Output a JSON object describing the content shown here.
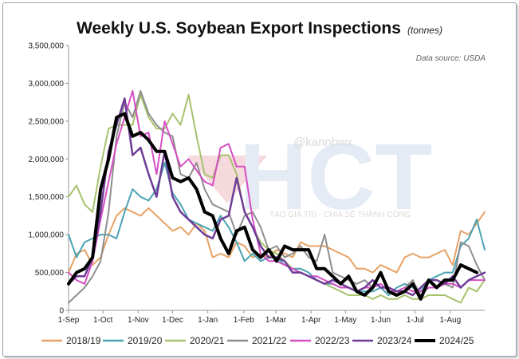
{
  "chart_data": {
    "type": "line",
    "title": "Weekly U.S. Soybean Export Inspections",
    "units": "(tonnes)",
    "source": "Data source: USDA",
    "xlabel": "",
    "ylabel": "",
    "ylim": [
      0,
      3500000
    ],
    "y_ticks": [
      0,
      500000,
      1000000,
      1500000,
      2000000,
      2500000,
      3000000,
      3500000
    ],
    "y_tick_labels": [
      "0",
      "500,000",
      "1,000,000",
      "1,500,000",
      "2,000,000",
      "2,500,000",
      "3,000,000",
      "3,500,000"
    ],
    "x_week_range": [
      0,
      52
    ],
    "x_ticks": [
      0,
      4.3,
      8.7,
      13,
      17.4,
      21.9,
      25.9,
      30.3,
      34.6,
      39,
      43.3,
      47.7
    ],
    "x_tick_labels": [
      "1-Sep",
      "1-Oct",
      "1-Nov",
      "1-Dec",
      "1-Jan",
      "1-Feb",
      "1-Mar",
      "1-Apr",
      "1-May",
      "1-Jun",
      "1-Jul",
      "1-Aug"
    ],
    "legend_position": "bottom",
    "grid": false,
    "series": [
      {
        "name": "2018/19",
        "color": "#E8A265",
        "width": 2,
        "values": [
          500000,
          750000,
          800000,
          600000,
          700000,
          1000000,
          1250000,
          1350000,
          1300000,
          1250000,
          1350000,
          1250000,
          1150000,
          1050000,
          1100000,
          1000000,
          1150000,
          1050000,
          700000,
          750000,
          700000,
          900000,
          850000,
          700000,
          750000,
          700000,
          800000,
          750000,
          700000,
          900000,
          850000,
          850000,
          850000,
          800000,
          750000,
          700000,
          550000,
          550000,
          500000,
          600000,
          550000,
          500000,
          700000,
          750000,
          700000,
          700000,
          750000,
          800000,
          600000,
          1050000,
          1000000,
          1150000,
          1300000
        ]
      },
      {
        "name": "2019/20",
        "color": "#4AA3B3",
        "width": 2,
        "values": [
          1000000,
          700000,
          900000,
          950000,
          1000000,
          1000000,
          950000,
          1300000,
          1600000,
          1500000,
          1450000,
          1600000,
          1950000,
          1550000,
          1400000,
          1200000,
          1150000,
          1100000,
          1050000,
          1250000,
          1100000,
          900000,
          650000,
          750000,
          650000,
          700000,
          700000,
          600000,
          550000,
          550000,
          500000,
          400000,
          350000,
          350000,
          300000,
          300000,
          250000,
          250000,
          250000,
          300000,
          200000,
          300000,
          350000,
          300000,
          250000,
          400000,
          450000,
          500000,
          500000,
          850000,
          950000,
          1200000,
          800000
        ]
      },
      {
        "name": "2020/21",
        "color": "#A7C26D",
        "width": 2,
        "values": [
          1500000,
          1650000,
          1400000,
          1300000,
          1900000,
          2400000,
          2450000,
          2450000,
          2450000,
          2850000,
          2550000,
          2400000,
          2400000,
          2600000,
          2450000,
          2850000,
          2300000,
          1800000,
          1750000,
          2050000,
          2050000,
          1800000,
          1300000,
          1100000,
          900000,
          800000,
          750000,
          650000,
          550000,
          500000,
          450000,
          400000,
          350000,
          300000,
          250000,
          200000,
          200000,
          200000,
          150000,
          200000,
          150000,
          150000,
          200000,
          150000,
          150000,
          200000,
          200000,
          200000,
          150000,
          100000,
          300000,
          250000,
          400000
        ]
      },
      {
        "name": "2021/22",
        "color": "#8E8E8E",
        "width": 2,
        "values": [
          100000,
          200000,
          300000,
          450000,
          650000,
          1300000,
          2300000,
          2750000,
          2550000,
          2900000,
          2600000,
          2450000,
          2350000,
          2300000,
          1800000,
          1750000,
          1950000,
          1600000,
          1400000,
          1350000,
          1300000,
          1000000,
          1250000,
          1300000,
          1100000,
          800000,
          850000,
          700000,
          750000,
          850000,
          700000,
          650000,
          1000000,
          500000,
          450000,
          400000,
          350000,
          400000,
          300000,
          500000,
          300000,
          250000,
          300000,
          400000,
          200000,
          300000,
          300000,
          350000,
          300000,
          900000,
          850000,
          600000,
          400000
        ]
      },
      {
        "name": "2022/23",
        "color": "#D64FC4",
        "width": 2,
        "values": [
          500000,
          400000,
          350000,
          650000,
          1200000,
          1700000,
          2200000,
          2550000,
          2900000,
          2300000,
          2350000,
          1800000,
          2500000,
          2200000,
          1900000,
          2000000,
          1850000,
          1700000,
          1650000,
          2150000,
          2200000,
          1900000,
          1900000,
          1200000,
          750000,
          650000,
          650000,
          600000,
          550000,
          500000,
          450000,
          450000,
          400000,
          350000,
          300000,
          300000,
          250000,
          300000,
          300000,
          350000,
          250000,
          250000,
          300000,
          250000,
          250000,
          300000,
          300000,
          350000,
          350000,
          300000,
          400000,
          400000,
          400000
        ]
      },
      {
        "name": "2023/24",
        "color": "#6E3B96",
        "width": 2.5,
        "values": [
          350000,
          450000,
          450000,
          700000,
          1300000,
          2100000,
          2450000,
          2800000,
          2050000,
          2150000,
          1800000,
          1500000,
          2100000,
          1500000,
          1300000,
          1200000,
          1100000,
          1000000,
          950000,
          1200000,
          1250000,
          1750000,
          1300000,
          1100000,
          850000,
          700000,
          700000,
          650000,
          500000,
          500000,
          450000,
          400000,
          350000,
          400000,
          350000,
          300000,
          250000,
          300000,
          400000,
          300000,
          300000,
          250000,
          250000,
          200000,
          300000,
          400000,
          400000,
          350000,
          450000,
          300000,
          400000,
          450000,
          500000
        ]
      },
      {
        "name": "2024/25",
        "color": "#000000",
        "width": 4,
        "values": [
          350000,
          500000,
          550000,
          700000,
          1600000,
          2000000,
          2550000,
          2600000,
          2300000,
          2350000,
          2250000,
          2100000,
          2100000,
          1750000,
          1700000,
          1750000,
          1600000,
          1300000,
          1250000,
          950000,
          750000,
          1050000,
          1100000,
          800000,
          700000,
          800000,
          650000,
          850000,
          800000,
          800000,
          800000,
          550000,
          550000,
          450000,
          350000,
          450000,
          250000,
          200000,
          300000,
          500000,
          250000,
          200000,
          250000,
          350000,
          150000,
          400000,
          300000,
          400000,
          400000,
          600000,
          550000,
          500000,
          null
        ]
      }
    ]
  },
  "watermark": {
    "handle": "@kannbwx",
    "logo_text": "HCT",
    "tagline": "TẠO GIÁ TRỊ - CHIA SẺ THÀNH CÔNG"
  }
}
